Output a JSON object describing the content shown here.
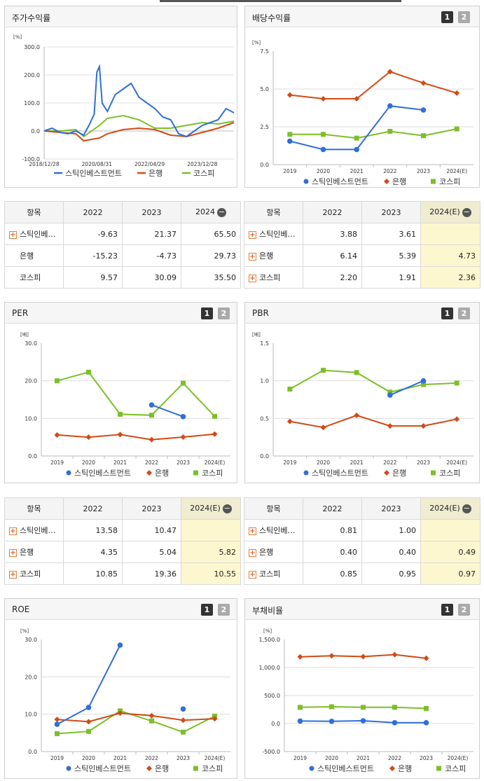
{
  "charts": {
    "stock": {
      "title": "주가수익률",
      "unit": "[%]",
      "yticks": [
        "300.0",
        "200.0",
        "100.0",
        "0.0",
        "-100.0"
      ],
      "xticks": [
        "2018/12/28",
        "2020/08/31",
        "2022/04/29",
        "2023/12/28"
      ],
      "legend": [
        "스틱인베스트먼트",
        "은행",
        "코스피"
      ]
    },
    "dividend": {
      "title": "배당수익률",
      "unit": "[%]",
      "b1": "1",
      "b2": "2",
      "yticks": [
        "7.5",
        "5.0",
        "2.5",
        "0.0"
      ],
      "xticks": [
        "2019",
        "2020",
        "2021",
        "2022",
        "2023",
        "2024(E)"
      ],
      "legend": [
        "스틱인베스트먼트",
        "은행",
        "코스피"
      ]
    },
    "per": {
      "title": "PER",
      "unit": "[배]",
      "b1": "1",
      "b2": "2",
      "yticks": [
        "30.0",
        "20.0",
        "10.0",
        "0.0"
      ],
      "xticks": [
        "2019",
        "2020",
        "2021",
        "2022",
        "2023",
        "2024(E)"
      ],
      "legend": [
        "스틱인베스트먼트",
        "은행",
        "코스피"
      ]
    },
    "pbr": {
      "title": "PBR",
      "unit": "[배]",
      "b1": "1",
      "b2": "2",
      "yticks": [
        "1.5",
        "1.0",
        "0.5",
        "0.0"
      ],
      "xticks": [
        "2019",
        "2020",
        "2021",
        "2022",
        "2023",
        "2024(E)"
      ],
      "legend": [
        "스틱인베스트먼트",
        "은행",
        "코스피"
      ]
    },
    "roe": {
      "title": "ROE",
      "unit": "[%]",
      "b1": "1",
      "b2": "2",
      "yticks": [
        "30.0",
        "20.0",
        "10.0",
        "0.0"
      ],
      "xticks": [
        "2019",
        "2020",
        "2021",
        "2022",
        "2023",
        "2024(E)"
      ],
      "legend": [
        "스틱인베스트먼트",
        "은행",
        "코스피"
      ]
    },
    "debt": {
      "title": "부채비율",
      "unit": "[%]",
      "b1": "1",
      "b2": "2",
      "yticks": [
        "1,500.0",
        "1,000.0",
        "500.0",
        "0.0",
        "-500.0"
      ],
      "xticks": [
        "2019",
        "2020",
        "2021",
        "2022",
        "2023",
        "2024(E)"
      ],
      "legend": [
        "스틱인베스트먼트",
        "은행",
        "코스피"
      ]
    }
  },
  "tables": {
    "stock": {
      "h": [
        "항목",
        "2022",
        "2023",
        "2024"
      ],
      "rows": [
        [
          "스틱인베…",
          "-9.63",
          "21.37",
          "65.50"
        ],
        [
          "은행",
          "-15.23",
          "-4.73",
          "29.73"
        ],
        [
          "코스피",
          "9.57",
          "30.09",
          "35.50"
        ]
      ]
    },
    "dividend": {
      "h": [
        "항목",
        "2022",
        "2023",
        "2024(E)"
      ],
      "rows": [
        [
          "스틱인베…",
          "3.88",
          "3.61",
          ""
        ],
        [
          "은행",
          "6.14",
          "5.39",
          "4.73"
        ],
        [
          "코스피",
          "2.20",
          "1.91",
          "2.36"
        ]
      ]
    },
    "per": {
      "h": [
        "항목",
        "2022",
        "2023",
        "2024(E)"
      ],
      "rows": [
        [
          "스틱인베…",
          "13.58",
          "10.47",
          ""
        ],
        [
          "은행",
          "4.35",
          "5.04",
          "5.82"
        ],
        [
          "코스피",
          "10.85",
          "19.36",
          "10.55"
        ]
      ]
    },
    "pbr": {
      "h": [
        "항목",
        "2022",
        "2023",
        "2024(E)"
      ],
      "rows": [
        [
          "스틱인베…",
          "0.81",
          "1.00",
          ""
        ],
        [
          "은행",
          "0.40",
          "0.40",
          "0.49"
        ],
        [
          "코스피",
          "0.85",
          "0.95",
          "0.97"
        ]
      ]
    }
  },
  "colors": {
    "s1": "#2f6fd8",
    "s2": "#d24a14",
    "s3": "#7cbf2a"
  },
  "chart_data": [
    {
      "id": "stock",
      "type": "line",
      "title": "주가수익률",
      "ylabel": "[%]",
      "ylim": [
        -100,
        300
      ],
      "x_range": [
        "2018/12/28",
        "2024/12"
      ],
      "series": [
        {
          "name": "스틱인베스트먼트",
          "x": [
            "2018/12",
            "2019/03",
            "2019/06",
            "2019/09",
            "2019/12",
            "2020/03",
            "2020/05",
            "2020/07",
            "2020/08",
            "2020/09",
            "2020/10",
            "2020/12",
            "2021/03",
            "2021/06",
            "2021/09",
            "2021/12",
            "2022/03",
            "2022/06",
            "2022/09",
            "2022/12",
            "2023/03",
            "2023/06",
            "2023/09",
            "2023/12",
            "2024/03",
            "2024/06",
            "2024/09",
            "2024/12"
          ],
          "values": [
            0,
            10,
            -5,
            -10,
            0,
            -15,
            20,
            60,
            210,
            230,
            100,
            70,
            130,
            150,
            170,
            120,
            100,
            80,
            50,
            40,
            -10,
            -20,
            0,
            20,
            30,
            40,
            80,
            65
          ]
        },
        {
          "name": "은행",
          "x": [
            "2018/12",
            "2019/06",
            "2019/12",
            "2020/03",
            "2020/09",
            "2020/12",
            "2021/06",
            "2021/12",
            "2022/06",
            "2022/12",
            "2023/06",
            "2023/12",
            "2024/06",
            "2024/12"
          ],
          "values": [
            0,
            -5,
            -10,
            -35,
            -25,
            -10,
            5,
            10,
            5,
            -15,
            -20,
            -5,
            10,
            30
          ]
        },
        {
          "name": "코스피",
          "x": [
            "2018/12",
            "2019/06",
            "2019/12",
            "2020/03",
            "2020/09",
            "2020/12",
            "2021/06",
            "2021/12",
            "2022/06",
            "2022/12",
            "2023/06",
            "2023/12",
            "2024/06",
            "2024/12"
          ],
          "values": [
            0,
            0,
            5,
            -20,
            20,
            45,
            55,
            40,
            10,
            10,
            20,
            30,
            25,
            35
          ]
        }
      ]
    },
    {
      "id": "dividend",
      "type": "line",
      "title": "배당수익률",
      "ylabel": "[%]",
      "ylim": [
        0,
        7.5
      ],
      "categories": [
        "2019",
        "2020",
        "2021",
        "2022",
        "2023",
        "2024(E)"
      ],
      "series": [
        {
          "name": "스틱인베스트먼트",
          "values": [
            1.55,
            1.0,
            1.0,
            3.88,
            3.61,
            null
          ]
        },
        {
          "name": "은행",
          "values": [
            4.6,
            4.35,
            4.35,
            6.14,
            5.39,
            4.73
          ]
        },
        {
          "name": "코스피",
          "values": [
            2.0,
            2.0,
            1.75,
            2.2,
            1.91,
            2.36
          ]
        }
      ]
    },
    {
      "id": "per",
      "type": "line",
      "title": "PER",
      "ylabel": "[배]",
      "ylim": [
        0,
        30
      ],
      "categories": [
        "2019",
        "2020",
        "2021",
        "2022",
        "2023",
        "2024(E)"
      ],
      "series": [
        {
          "name": "스틱인베스트먼트",
          "values": [
            null,
            null,
            null,
            13.58,
            10.47,
            null
          ]
        },
        {
          "name": "은행",
          "values": [
            5.6,
            5.0,
            5.7,
            4.35,
            5.04,
            5.82
          ]
        },
        {
          "name": "코스피",
          "values": [
            20.0,
            22.3,
            11.1,
            10.85,
            19.36,
            10.55
          ]
        }
      ]
    },
    {
      "id": "pbr",
      "type": "line",
      "title": "PBR",
      "ylabel": "[배]",
      "ylim": [
        0,
        1.5
      ],
      "categories": [
        "2019",
        "2020",
        "2021",
        "2022",
        "2023",
        "2024(E)"
      ],
      "series": [
        {
          "name": "스틱인베스트먼트",
          "values": [
            null,
            null,
            null,
            0.81,
            1.0,
            null
          ]
        },
        {
          "name": "은행",
          "values": [
            0.46,
            0.38,
            0.54,
            0.4,
            0.4,
            0.49
          ]
        },
        {
          "name": "코스피",
          "values": [
            0.89,
            1.14,
            1.11,
            0.85,
            0.95,
            0.97
          ]
        }
      ]
    },
    {
      "id": "roe",
      "type": "line",
      "title": "ROE",
      "ylabel": "[%]",
      "ylim": [
        0,
        30
      ],
      "categories": [
        "2019",
        "2020",
        "2021",
        "2022",
        "2023",
        "2024(E)"
      ],
      "series": [
        {
          "name": "스틱인베스트먼트",
          "values": [
            7.3,
            11.8,
            28.5,
            null,
            11.4,
            null
          ]
        },
        {
          "name": "은행",
          "values": [
            8.6,
            8.0,
            10.3,
            9.6,
            8.4,
            8.8
          ]
        },
        {
          "name": "코스피",
          "values": [
            4.8,
            5.4,
            10.9,
            8.2,
            5.2,
            9.5
          ]
        }
      ]
    },
    {
      "id": "debt",
      "type": "line",
      "title": "부채비율",
      "ylabel": "[%]",
      "ylim": [
        -500,
        1500
      ],
      "categories": [
        "2019",
        "2020",
        "2021",
        "2022",
        "2023",
        "2024(E)"
      ],
      "series": [
        {
          "name": "스틱인베스트먼트",
          "values": [
            45,
            40,
            50,
            15,
            15,
            null
          ]
        },
        {
          "name": "은행",
          "values": [
            1190,
            1210,
            1195,
            1230,
            1165,
            null
          ]
        },
        {
          "name": "코스피",
          "values": [
            290,
            300,
            290,
            290,
            270,
            null
          ]
        }
      ]
    }
  ]
}
